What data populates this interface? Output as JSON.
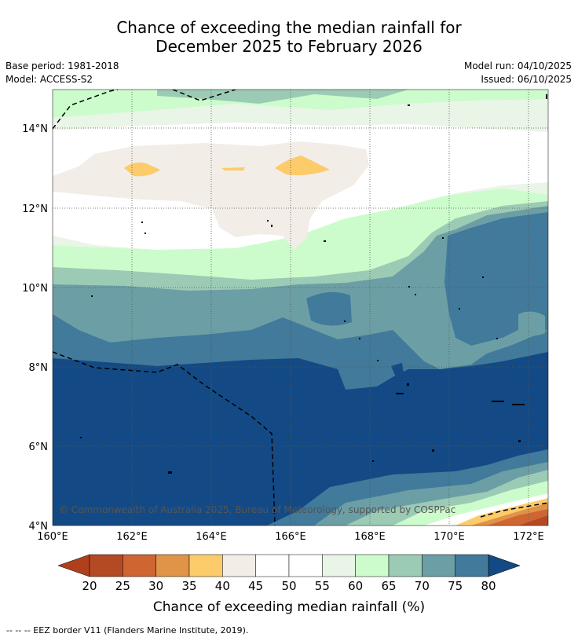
{
  "title": {
    "line1": "Chance of exceeding the median rainfall for",
    "line2": "December 2025 to February 2026"
  },
  "meta": {
    "base_period": "Base period: 1981-2018",
    "model": "Model: ACCESS-S2",
    "model_run": "Model run: 04/10/2025",
    "issued": "Issued: 06/10/2025"
  },
  "map": {
    "copyright": "© Commonwealth of Australia 2025, Bureau of Meteorology, supported by COSPPac",
    "lon_ticks": [
      "160°E",
      "162°E",
      "164°E",
      "166°E",
      "168°E",
      "170°E",
      "172°E"
    ],
    "lat_ticks": [
      "14°N",
      "12°N",
      "10°N",
      "8°N",
      "6°N",
      "4°N"
    ]
  },
  "colorbar": {
    "title": "Chance of exceeding median rainfall (%)",
    "ticks": [
      "20",
      "25",
      "30",
      "35",
      "40",
      "45",
      "50",
      "55",
      "60",
      "65",
      "70",
      "75",
      "80"
    ],
    "colors": {
      "below20": "#b0401c",
      "c20_25": "#b34a24",
      "c25_30": "#cf6632",
      "c30_35": "#e09448",
      "c35_40": "#fccb6a",
      "c40_45": "#f2ede7",
      "c45_50": "#ffffff",
      "c50_55": "#ffffff",
      "c55_60": "#e9f5e6",
      "c60_65": "#ccfccc",
      "c65_70": "#9ccbb5",
      "c70_75": "#6c9fa5",
      "c75_80": "#417a9a",
      "above80": "#134a85"
    }
  },
  "footnote": "--  --  -- EEZ border V11 (Flanders Marine Institute, 2019)."
}
